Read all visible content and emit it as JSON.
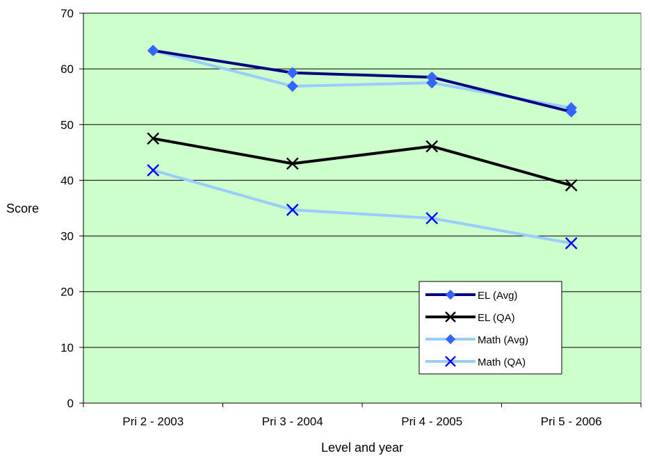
{
  "chart_data": {
    "type": "line",
    "xlabel": "Level and year",
    "ylabel": "Score",
    "categories": [
      "Pri 2 - 2003",
      "Pri 3 - 2004",
      "Pri 4 - 2005",
      "Pri 5 - 2006"
    ],
    "ylim": [
      0,
      70
    ],
    "yticks": [
      0,
      10,
      20,
      30,
      40,
      50,
      60,
      70
    ],
    "grid": true,
    "plot_background": "#ccffcc",
    "legend_position": "bottom-right",
    "series": [
      {
        "name": "EL (Avg)",
        "values": [
          63.3,
          59.3,
          58.5,
          52.3
        ],
        "color": "#000080",
        "marker": "diamond",
        "marker_color": "#3366ff"
      },
      {
        "name": "EL (QA)",
        "values": [
          47.5,
          43.0,
          46.1,
          39.1
        ],
        "color": "#000000",
        "marker": "x",
        "marker_color": "#000000"
      },
      {
        "name": "Math (Avg)",
        "values": [
          63.3,
          56.9,
          57.5,
          53.0
        ],
        "color": "#99ccff",
        "marker": "diamond",
        "marker_color": "#3366ff"
      },
      {
        "name": "Math (QA)",
        "values": [
          41.8,
          34.7,
          33.2,
          28.7
        ],
        "color": "#99ccff",
        "marker": "x",
        "marker_color": "#0000ff"
      }
    ]
  }
}
